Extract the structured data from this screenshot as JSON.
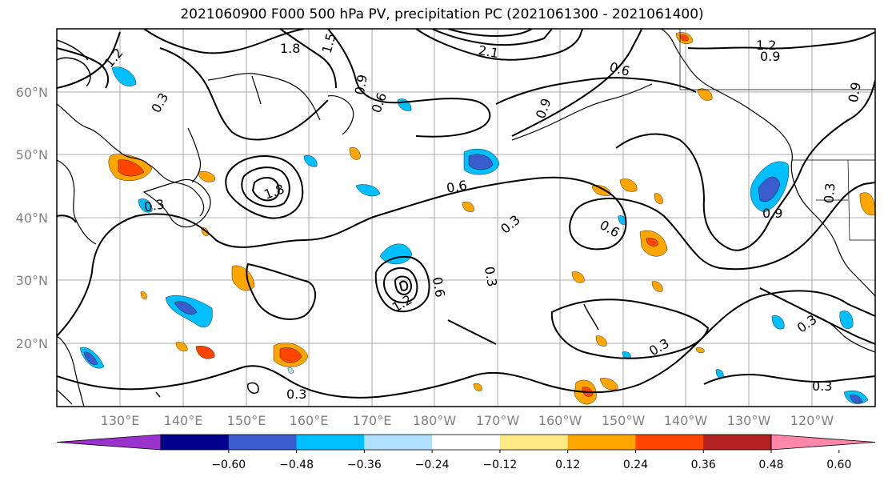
{
  "title": "2021060900 F000 500 hPa PV, precipitation PC (2021061300 - 2021061400)",
  "lat_labels": [
    "60°N",
    "50°N",
    "40°N",
    "30°N",
    "20°N"
  ],
  "lon_labels": [
    "130°E",
    "140°E",
    "150°E",
    "160°E",
    "170°E",
    "180°W",
    "170°W",
    "160°W",
    "150°W",
    "140°W",
    "130°W",
    "120°W"
  ],
  "contour_labels": [
    "1.8",
    "1.5",
    "0.6",
    "0.9",
    "0.3",
    "1.2",
    "0.6",
    "1.8",
    "2.1",
    "0.6",
    "0.3",
    "0.3",
    "0.9",
    "0.6",
    "0.3",
    "1.2",
    "0.9",
    "0.3",
    "0.3",
    "0.3",
    "0.3",
    "0.9",
    "0.3",
    "1.2",
    "0.9",
    "0.6"
  ],
  "colorbar": {
    "ticks": [
      "−0.60",
      "−0.48",
      "−0.36",
      "−0.24",
      "−0.12",
      "0.12",
      "0.24",
      "0.36",
      "0.48",
      "0.60"
    ],
    "colors": [
      "#9b32cd",
      "#00008b",
      "#3a5ccc",
      "#00bfff",
      "#b0e2ff",
      "#ffffff",
      "#ffe985",
      "#ffa500",
      "#ff4500",
      "#b22222",
      "#ff88aa"
    ]
  }
}
